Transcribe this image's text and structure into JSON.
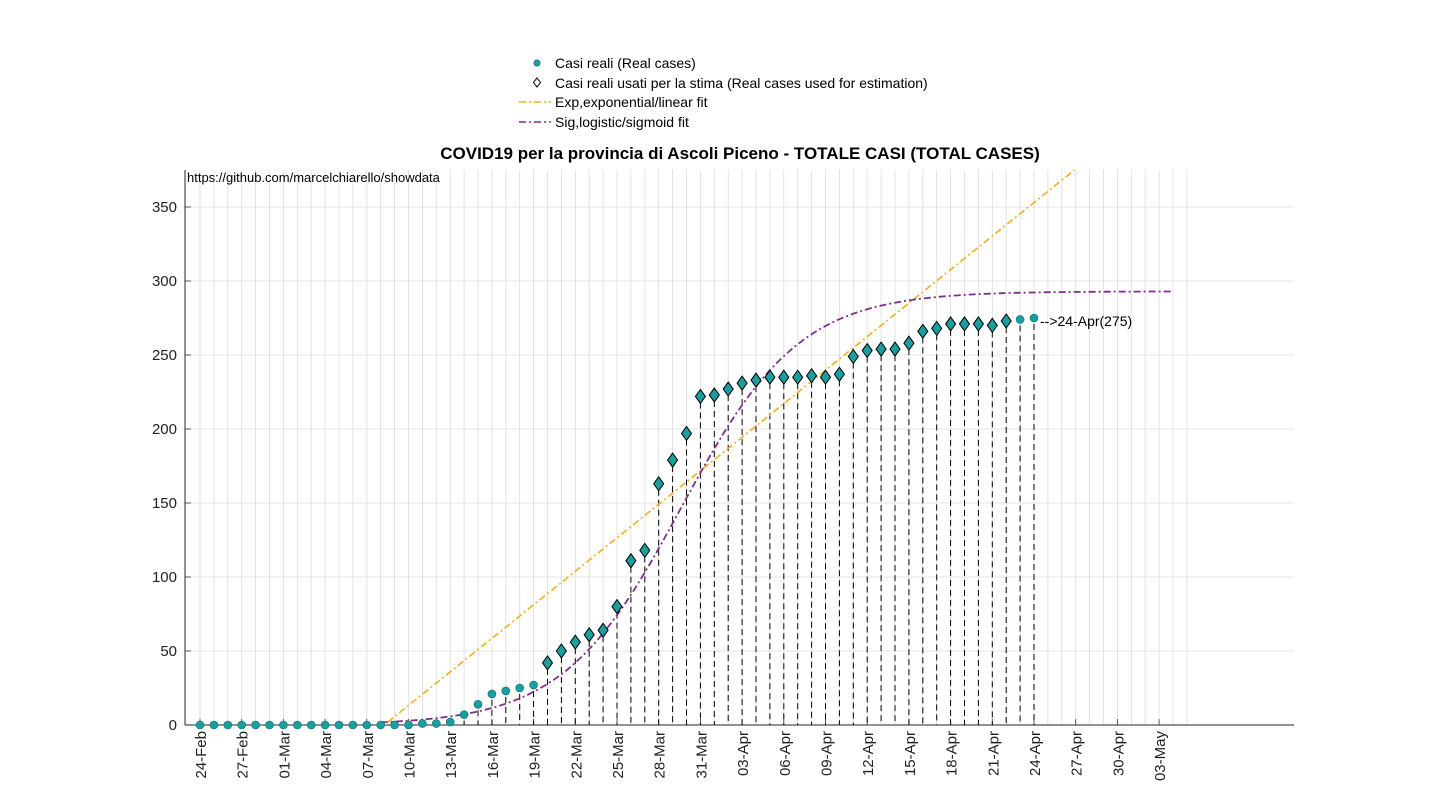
{
  "chart_data": {
    "type": "scatter",
    "title": "COVID19 per la provincia di Ascoli Piceno - TOTALE CASI (TOTAL CASES)",
    "source_note": "https://github.com/marcelchiarello/showdata",
    "xlabel": "",
    "ylabel": "",
    "ylim": [
      0,
      375
    ],
    "yticks": [
      0,
      50,
      100,
      150,
      200,
      250,
      300,
      350
    ],
    "x_start": "24-Feb",
    "x_end_day_index": 71,
    "xtick_labels": [
      "24-Feb",
      "27-Feb",
      "01-Mar",
      "04-Mar",
      "07-Mar",
      "10-Mar",
      "13-Mar",
      "16-Mar",
      "19-Mar",
      "22-Mar",
      "25-Mar",
      "28-Mar",
      "31-Mar",
      "03-Apr",
      "06-Apr",
      "09-Apr",
      "12-Apr",
      "15-Apr",
      "18-Apr",
      "21-Apr",
      "24-Apr",
      "27-Apr",
      "30-Apr",
      "03-May"
    ],
    "grid": true,
    "legend_position": "top-center",
    "legend": [
      {
        "label": "Casi reali (Real cases)",
        "marker": "circle",
        "color": "#1a9e9e"
      },
      {
        "label": "Casi reali usati per la stima (Real cases used for estimation)",
        "marker": "diamond",
        "color": "#000000"
      },
      {
        "label": "Exp,exponential/linear fit",
        "line": "dash-dot",
        "color": "#EDB120"
      },
      {
        "label": "Sig,logistic/sigmoid fit",
        "line": "dash-dot",
        "color": "#7E2F8E"
      }
    ],
    "real_cases": [
      0,
      0,
      0,
      0,
      0,
      0,
      0,
      0,
      0,
      0,
      0,
      0,
      0,
      0,
      0,
      0,
      1,
      1,
      2,
      7,
      14,
      21,
      23,
      25,
      27,
      42,
      50,
      56,
      61,
      64,
      80,
      111,
      118,
      163,
      179,
      197,
      222,
      223,
      227,
      231,
      233,
      235,
      235,
      235,
      236,
      235,
      237,
      249,
      253,
      254,
      254,
      258,
      266,
      268,
      271,
      271,
      271,
      270,
      273,
      274,
      275
    ],
    "estimation_start_index": 25,
    "linear_fit": {
      "slope": 7.55,
      "intercept": -100.0
    },
    "sigmoid_fit": {
      "K": 293,
      "r": 0.235,
      "t0": 34.6,
      "x_end_index": 70
    },
    "annotation": {
      "label": "24-Apr(275)",
      "day_index": 60,
      "value": 275
    }
  }
}
